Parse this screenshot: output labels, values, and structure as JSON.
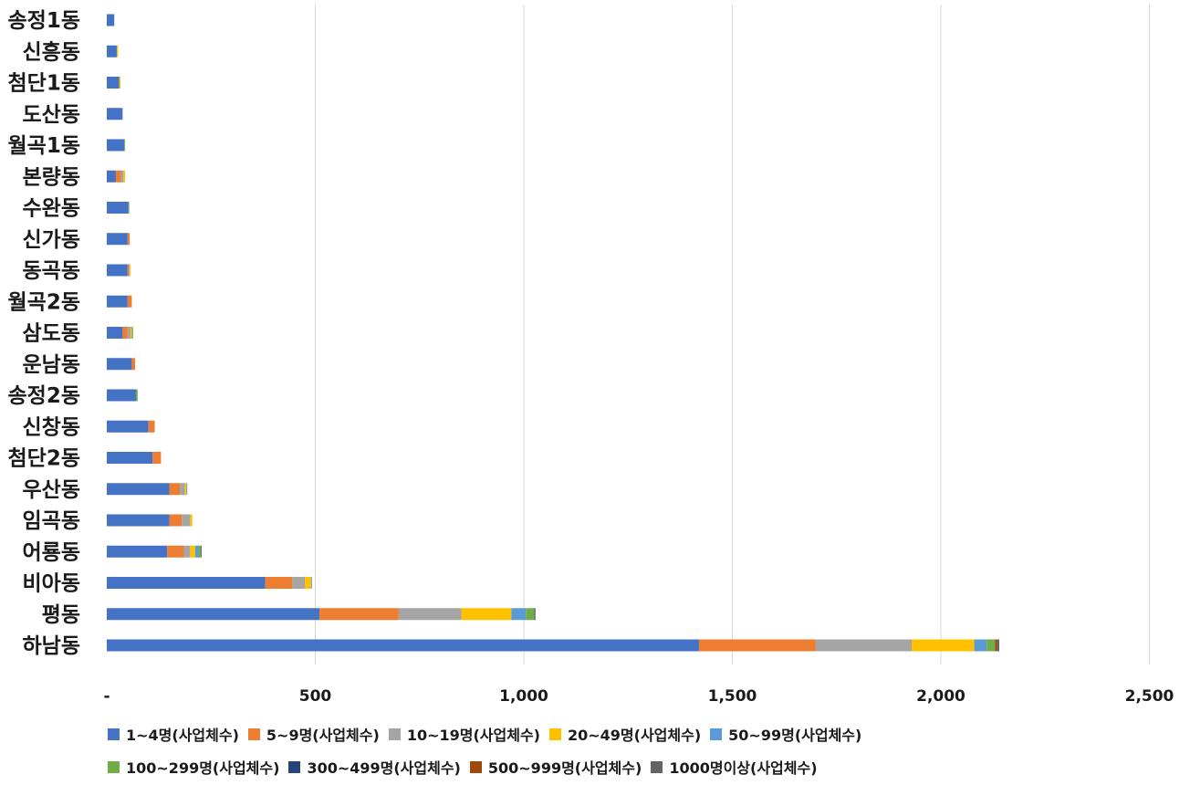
{
  "chart_data": {
    "type": "bar",
    "orientation": "horizontal",
    "stacked": true,
    "title": "",
    "xlabel": "",
    "ylabel": "",
    "xlim": [
      0,
      2500
    ],
    "grid": true,
    "legend_position": "bottom",
    "x_ticks": [
      "-",
      "500",
      "1,000",
      "1,500",
      "2,000",
      "2,500"
    ],
    "categories": [
      "송정1동",
      "신흥동",
      "첨단1동",
      "도산동",
      "월곡1동",
      "본량동",
      "수완동",
      "신가동",
      "동곡동",
      "월곡2동",
      "삼도동",
      "운남동",
      "송정2동",
      "신창동",
      "첨단2동",
      "우산동",
      "임곡동",
      "어룡동",
      "비아동",
      "평동",
      "하남동"
    ],
    "series": [
      {
        "name": "1~4명(사업체수)",
        "color": "#4472C4",
        "values": [
          18,
          24,
          30,
          38,
          42,
          22,
          52,
          50,
          50,
          50,
          38,
          60,
          70,
          100,
          110,
          150,
          150,
          145,
          380,
          510,
          1420
        ]
      },
      {
        "name": "5~9명(사업체수)",
        "color": "#ED7D31",
        "values": [
          0,
          0,
          0,
          0,
          0,
          12,
          0,
          5,
          3,
          10,
          12,
          8,
          0,
          15,
          20,
          25,
          30,
          40,
          65,
          190,
          280
        ]
      },
      {
        "name": "10~19명(사업체수)",
        "color": "#A5A5A5",
        "values": [
          0,
          0,
          0,
          0,
          0,
          6,
          0,
          0,
          2,
          0,
          7,
          0,
          0,
          0,
          0,
          12,
          20,
          15,
          30,
          150,
          230
        ]
      },
      {
        "name": "20~49명(사업체수)",
        "color": "#FFC000",
        "values": [
          0,
          3,
          3,
          0,
          0,
          4,
          0,
          0,
          2,
          0,
          3,
          0,
          0,
          0,
          0,
          4,
          5,
          12,
          15,
          120,
          150
        ]
      },
      {
        "name": "50~99명(사업체수)",
        "color": "#5B9BD5",
        "values": [
          0,
          0,
          0,
          0,
          0,
          0,
          0,
          0,
          0,
          0,
          0,
          0,
          0,
          0,
          0,
          2,
          0,
          8,
          2,
          35,
          30
        ]
      },
      {
        "name": "100~299명(사업체수)",
        "color": "#70AD47",
        "values": [
          0,
          0,
          0,
          0,
          2,
          0,
          2,
          0,
          0,
          0,
          3,
          0,
          4,
          0,
          0,
          0,
          0,
          5,
          0,
          20,
          20
        ]
      },
      {
        "name": "300~499명(사업체수)",
        "color": "#264478",
        "values": [
          0,
          0,
          0,
          0,
          0,
          0,
          0,
          0,
          0,
          0,
          0,
          0,
          0,
          0,
          0,
          0,
          0,
          2,
          0,
          0,
          0
        ]
      },
      {
        "name": "500~999명(사업체수)",
        "color": "#9E480E",
        "values": [
          0,
          0,
          0,
          0,
          0,
          0,
          0,
          0,
          0,
          0,
          0,
          0,
          0,
          0,
          0,
          0,
          0,
          0,
          0,
          0,
          5
        ]
      },
      {
        "name": "1000명이상(사업체수)",
        "color": "#636363",
        "values": [
          0,
          0,
          0,
          0,
          0,
          0,
          0,
          0,
          0,
          0,
          0,
          0,
          0,
          0,
          0,
          0,
          0,
          0,
          0,
          3,
          5
        ]
      }
    ]
  }
}
